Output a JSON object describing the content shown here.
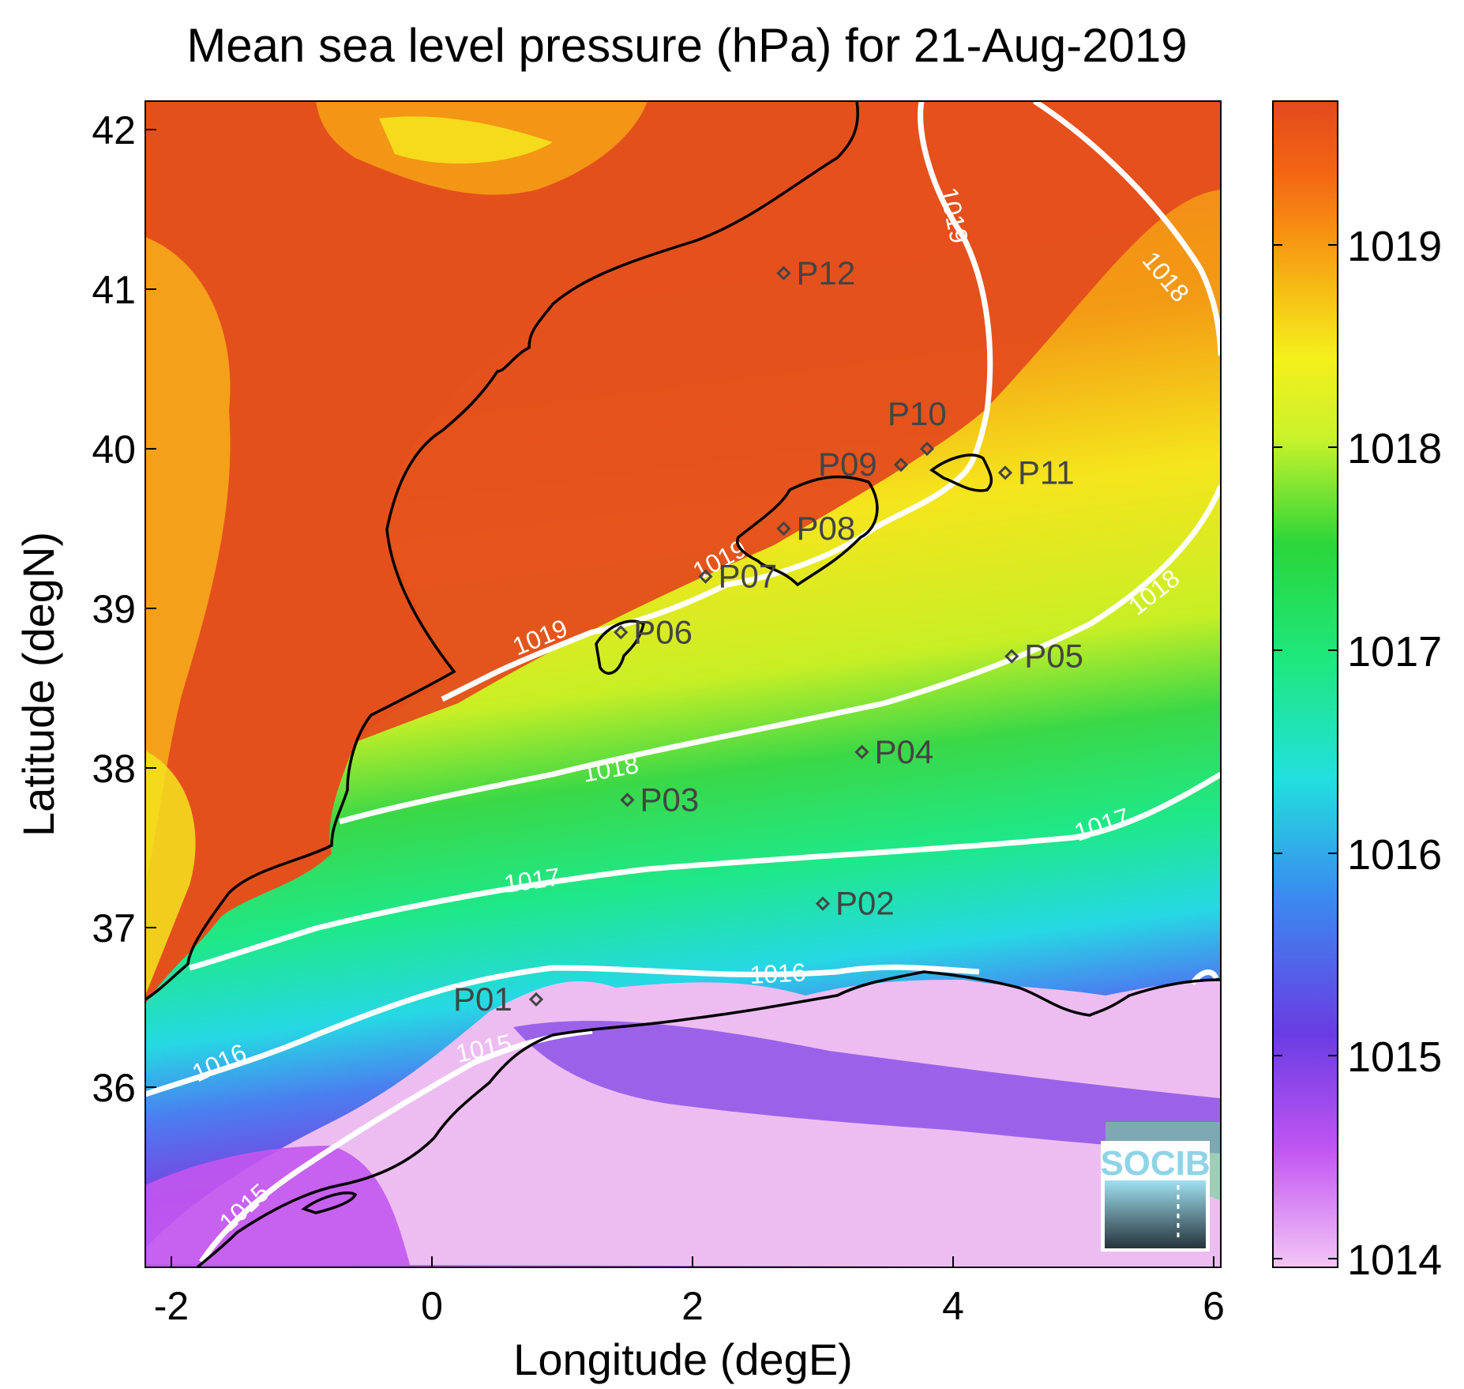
{
  "title": "Mean sea level pressure (hPa) for 21-Aug-2019",
  "xlabel": "Longitude (degE)",
  "ylabel": "Latitude (degN)",
  "x_ticks": [
    "-2",
    "0",
    "2",
    "4",
    "6"
  ],
  "y_ticks": [
    "42",
    "41",
    "40",
    "39",
    "38",
    "37",
    "36"
  ],
  "colorbar": {
    "ticks": [
      "1019",
      "1018",
      "1017",
      "1016",
      "1015",
      "1014"
    ],
    "range": [
      1013.95,
      1019.7
    ]
  },
  "stations": [
    {
      "id": "P01",
      "lon": 0.8,
      "lat": 36.55
    },
    {
      "id": "P02",
      "lon": 3.0,
      "lat": 37.15
    },
    {
      "id": "P03",
      "lon": 1.5,
      "lat": 37.8
    },
    {
      "id": "P04",
      "lon": 3.3,
      "lat": 38.1
    },
    {
      "id": "P05",
      "lon": 4.45,
      "lat": 38.7
    },
    {
      "id": "P06",
      "lon": 1.45,
      "lat": 38.85
    },
    {
      "id": "P07",
      "lon": 2.1,
      "lat": 39.2
    },
    {
      "id": "P08",
      "lon": 2.7,
      "lat": 39.5
    },
    {
      "id": "P09",
      "lon": 3.6,
      "lat": 39.9
    },
    {
      "id": "P10",
      "lon": 3.8,
      "lat": 40.0
    },
    {
      "id": "P11",
      "lon": 4.4,
      "lat": 39.85
    },
    {
      "id": "P12",
      "lon": 2.7,
      "lat": 41.1
    }
  ],
  "contour_labels": [
    "1019",
    "1019",
    "1019",
    "1018",
    "1018",
    "1018",
    "1017",
    "1017",
    "1016",
    "1016",
    "1015",
    "1015"
  ],
  "logo": "SOCIB"
}
